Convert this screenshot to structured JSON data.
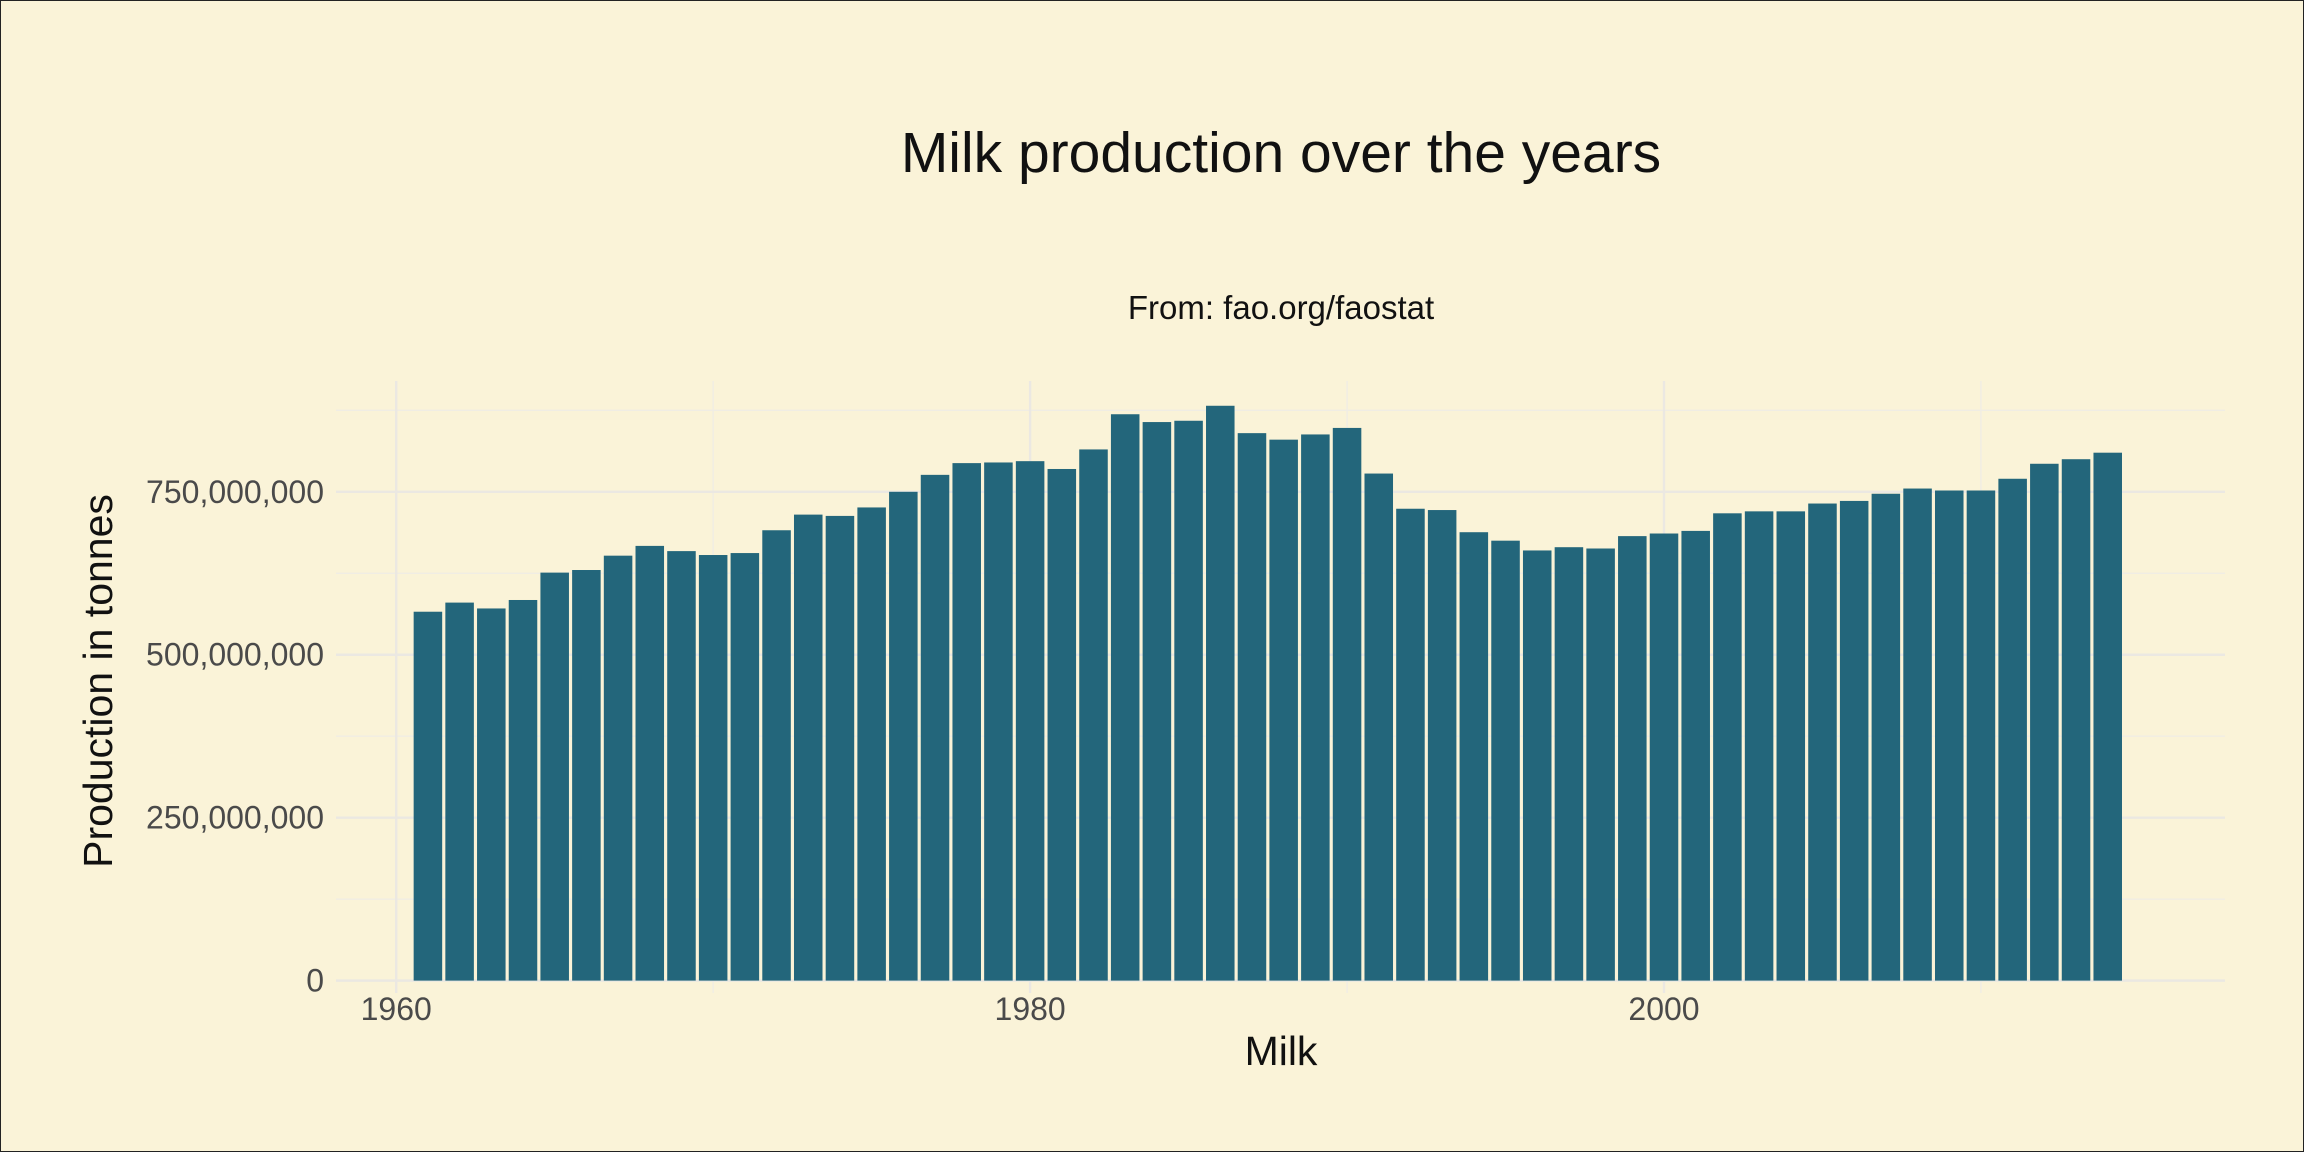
{
  "chart_data": {
    "type": "bar",
    "title": "Milk production over the years",
    "subtitle": "From: fao.org/faostat",
    "xlabel": "Milk",
    "ylabel": "Production in tonnes",
    "x_ticks": [
      {
        "value": 1960,
        "label": "1960"
      },
      {
        "value": 1980,
        "label": "1980"
      },
      {
        "value": 2000,
        "label": "2000"
      }
    ],
    "y_ticks": [
      {
        "value": 0,
        "label": "0"
      },
      {
        "value": 250000000,
        "label": "250,000,000"
      },
      {
        "value": 500000000,
        "label": "500,000,000"
      },
      {
        "value": 750000000,
        "label": "750,000,000"
      }
    ],
    "xlim": [
      1958.1,
      2017.7
    ],
    "ylim": [
      -19000000,
      920000000
    ],
    "grid": true,
    "bar_color": "#23667b",
    "background_color": "#faf3d8",
    "x": [
      1961,
      1962,
      1963,
      1964,
      1965,
      1966,
      1967,
      1968,
      1969,
      1970,
      1971,
      1972,
      1973,
      1974,
      1975,
      1976,
      1977,
      1978,
      1979,
      1980,
      1981,
      1982,
      1983,
      1984,
      1985,
      1986,
      1987,
      1988,
      1989,
      1990,
      1991,
      1992,
      1993,
      1994,
      1995,
      1996,
      1997,
      1998,
      1999,
      2000,
      2001,
      2002,
      2003,
      2004,
      2005,
      2006,
      2007,
      2008,
      2009,
      2010,
      2011,
      2012,
      2013,
      2014
    ],
    "values": [
      566000000,
      580000000,
      571000000,
      584000000,
      626000000,
      630000000,
      652000000,
      667000000,
      659000000,
      653000000,
      656000000,
      691000000,
      715000000,
      713000000,
      726000000,
      750000000,
      776000000,
      794000000,
      795000000,
      797000000,
      785000000,
      815000000,
      869000000,
      857000000,
      859000000,
      882000000,
      840000000,
      830000000,
      838000000,
      848000000,
      778000000,
      724000000,
      722000000,
      688000000,
      675000000,
      660000000,
      665000000,
      663000000,
      682000000,
      686000000,
      690000000,
      717000000,
      720000000,
      720000000,
      732000000,
      736000000,
      747000000,
      755000000,
      752000000,
      752000000,
      770000000,
      793000000,
      800000000,
      810000000
    ]
  }
}
